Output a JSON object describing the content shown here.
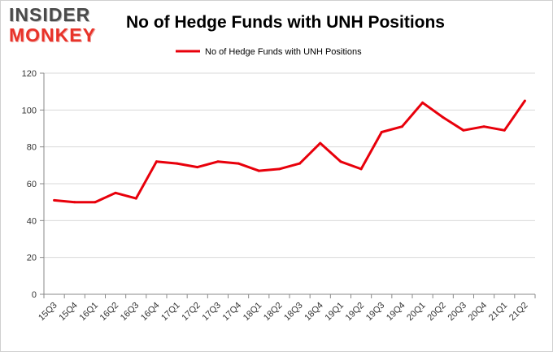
{
  "logo": {
    "line1": "INSIDER",
    "line2": "MONKEY"
  },
  "chart_data": {
    "type": "line",
    "title": "No of Hedge Funds with UNH Positions",
    "xlabel": "",
    "ylabel": "",
    "ylim": [
      0,
      120
    ],
    "yticks": [
      0,
      20,
      40,
      60,
      80,
      100,
      120
    ],
    "grid": true,
    "legend_position": "top-center",
    "categories": [
      "15Q3",
      "15Q4",
      "16Q1",
      "16Q2",
      "16Q3",
      "16Q4",
      "17Q1",
      "17Q2",
      "17Q3",
      "17Q4",
      "18Q1",
      "18Q2",
      "18Q3",
      "18Q4",
      "19Q1",
      "19Q2",
      "19Q3",
      "19Q4",
      "20Q1",
      "20Q2",
      "20Q3",
      "20Q4",
      "21Q1",
      "21Q2"
    ],
    "series": [
      {
        "name": "No of Hedge Funds with UNH Positions",
        "color": "#e8000b",
        "values": [
          51,
          50,
          50,
          55,
          52,
          72,
          71,
          69,
          72,
          71,
          67,
          68,
          71,
          82,
          72,
          68,
          88,
          91,
          104,
          96,
          89,
          91,
          89,
          105
        ]
      }
    ]
  }
}
